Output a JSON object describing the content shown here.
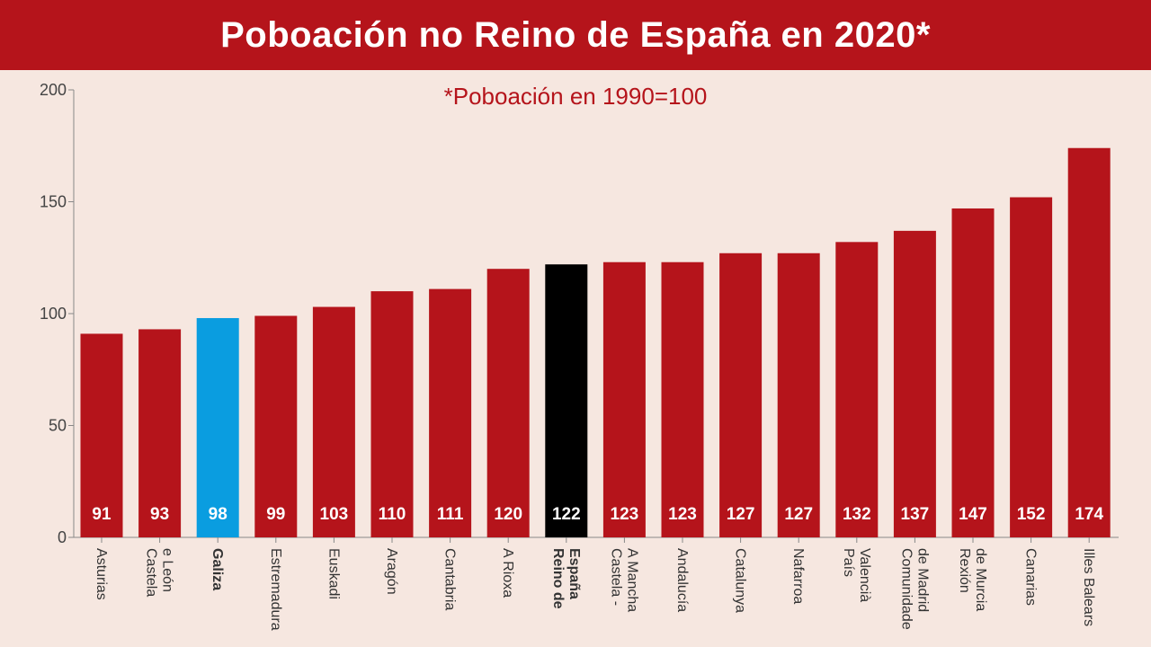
{
  "header": {
    "title": "Poboación no Reino de España en 2020*"
  },
  "colors": {
    "background": "#f6e7e0",
    "title_bar": "#b5141b",
    "bar_default": "#b5141b",
    "bar_galiza": "#0a9de0",
    "bar_spain": "#000000",
    "subtitle_text": "#b5141b",
    "axis": "#888888"
  },
  "chart_data": {
    "type": "bar",
    "subtitle": "*Poboación en 1990=100",
    "categories": [
      "Asturias",
      "Castela e León",
      "Galiza",
      "Estremadura",
      "Euskadi",
      "Aragón",
      "Cantabria",
      "A Rioxa",
      "Reino de España",
      "Castela - A Mancha",
      "Andalucía",
      "Catalunya",
      "Nafarroa",
      "País Valencià",
      "Comunidade de Madrid",
      "Rexión de Murcia",
      "Canarias",
      "Illes Balears"
    ],
    "label_lines": [
      [
        "Asturias"
      ],
      [
        "Castela",
        "e León"
      ],
      [
        "Galiza"
      ],
      [
        "Estremadura"
      ],
      [
        "Euskadi"
      ],
      [
        "Aragón"
      ],
      [
        "Cantabria"
      ],
      [
        "A Rioxa"
      ],
      [
        "Reino de",
        "España"
      ],
      [
        "Castela -",
        "A Mancha"
      ],
      [
        "Andalucía"
      ],
      [
        "Catalunya"
      ],
      [
        "Nafarroa"
      ],
      [
        "País",
        "Valencià"
      ],
      [
        "Comunidade",
        "de Madrid"
      ],
      [
        "Rexión",
        "de Murcia"
      ],
      [
        "Canarias"
      ],
      [
        "Illes Balears"
      ]
    ],
    "values": [
      91,
      93,
      98,
      99,
      103,
      110,
      111,
      120,
      122,
      123,
      123,
      127,
      127,
      132,
      137,
      147,
      152,
      174
    ],
    "highlight": {
      "Galiza": "bar_galiza",
      "Reino de España": "bar_spain"
    },
    "bold_categories": [
      "Galiza",
      "Reino de España"
    ],
    "yticks": [
      0,
      50,
      100,
      150,
      200
    ],
    "ylim": [
      0,
      200
    ],
    "grid": false,
    "data_labels": true
  }
}
